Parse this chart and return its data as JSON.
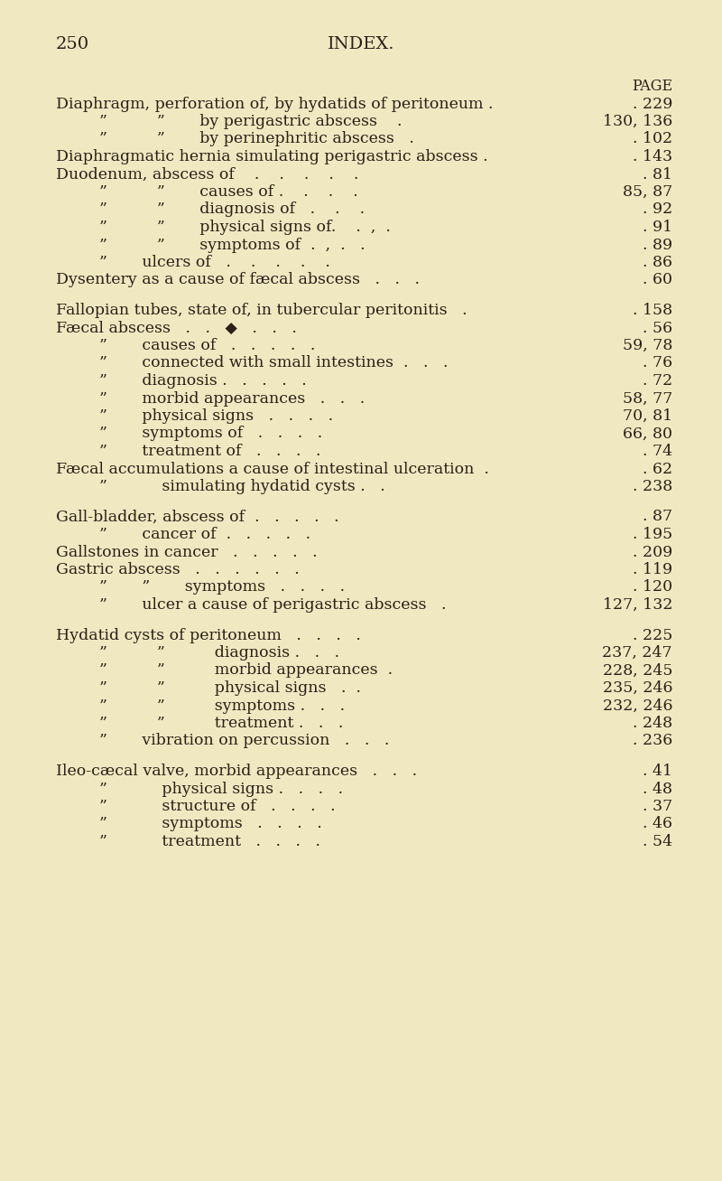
{
  "bg_color": "#f0e8c0",
  "text_color": "#2a2018",
  "page_number": "250",
  "page_header": "INDEX.",
  "font_size": 12.5,
  "header_font_size": 14,
  "page_num_font_size": 14,
  "lines": [
    {
      "indent": -2,
      "text": "PAGE",
      "page": "",
      "right_label": true
    },
    {
      "indent": 0,
      "text": "Diaphragm, perforation of, by hydatids of peritoneum .",
      "page": ". 229"
    },
    {
      "indent": 1,
      "text": "”          ”       by perigastric abscess    .",
      "page": "130, 136"
    },
    {
      "indent": 1,
      "text": "”          ”       by perinephritic abscess   .",
      "page": ". 102"
    },
    {
      "indent": 0,
      "text": "Diaphragmatic hernia simulating perigastric abscess .",
      "page": ". 143"
    },
    {
      "indent": 0,
      "text": "Duodenum, abscess of    .    .    .    .    .",
      "page": ". 81"
    },
    {
      "indent": 2,
      "text": "”          ”       causes of .    .    .    .",
      "page": "85, 87"
    },
    {
      "indent": 2,
      "text": "”          ”       diagnosis of   .    .    .",
      "page": ". 92"
    },
    {
      "indent": 2,
      "text": "”          ”       physical signs of.    .  ,  .",
      "page": ". 91"
    },
    {
      "indent": 2,
      "text": "”          ”       symptoms of  .  ,  .   .",
      "page": ". 89"
    },
    {
      "indent": 2,
      "text": "”       ulcers of   .    .    .    .    .",
      "page": ". 86"
    },
    {
      "indent": 0,
      "text": "Dysentery as a cause of fæcal abscess   .   .   .",
      "page": ". 60"
    },
    {
      "indent": -1,
      "text": "",
      "page": ""
    },
    {
      "indent": 0,
      "text": "Fallopian tubes, state of, in tubercular peritonitis   .",
      "page": ". 158"
    },
    {
      "indent": 0,
      "text": "Fæcal abscess   .   .   ◆   .   .   .",
      "page": ". 56"
    },
    {
      "indent": 2,
      "text": "”       causes of   .   .   .   .   .",
      "page": "59, 78"
    },
    {
      "indent": 2,
      "text": "”       connected with small intestines  .   .   .",
      "page": ". 76"
    },
    {
      "indent": 2,
      "text": "”       diagnosis .   .   .   .   .",
      "page": ". 72"
    },
    {
      "indent": 2,
      "text": "”       morbid appearances   .   .   .",
      "page": "58, 77"
    },
    {
      "indent": 2,
      "text": "”       physical signs   .   .   .   .",
      "page": "70, 81"
    },
    {
      "indent": 2,
      "text": "”       symptoms of   .   .   .   .",
      "page": "66, 80"
    },
    {
      "indent": 2,
      "text": "”       treatment of   .   .   .   .",
      "page": ". 74"
    },
    {
      "indent": 0,
      "text": "Fæcal accumulations a cause of intestinal ulceration  .",
      "page": ". 62"
    },
    {
      "indent": 2,
      "text": "”           simulating hydatid cysts .   .",
      "page": ". 238"
    },
    {
      "indent": -1,
      "text": "",
      "page": ""
    },
    {
      "indent": 0,
      "text": "Gall-bladder, abscess of  .   .   .   .   .",
      "page": ". 87"
    },
    {
      "indent": 2,
      "text": "”       cancer of  .   .   .   .   .",
      "page": ". 195"
    },
    {
      "indent": 0,
      "text": "Gallstones in cancer   .   .   .   .   .",
      "page": ". 209"
    },
    {
      "indent": 0,
      "text": "Gastric abscess   .   .   .   .   .   .",
      "page": ". 119"
    },
    {
      "indent": 2,
      "text": "”       ”       symptoms   .   .   .   .",
      "page": ". 120"
    },
    {
      "indent": 2,
      "text": "”       ulcer a cause of perigastric abscess   .",
      "page": "127, 132"
    },
    {
      "indent": -1,
      "text": "",
      "page": ""
    },
    {
      "indent": 0,
      "text": "Hydatid cysts of peritoneum   .   .   .   .",
      "page": ". 225"
    },
    {
      "indent": 2,
      "text": "”          ”          diagnosis .   .   .",
      "page": "237, 247"
    },
    {
      "indent": 2,
      "text": "”          ”          morbid appearances  .",
      "page": "228, 245"
    },
    {
      "indent": 2,
      "text": "”          ”          physical signs   .  .",
      "page": "235, 246"
    },
    {
      "indent": 2,
      "text": "”          ”          symptoms .   .   .",
      "page": "232, 246"
    },
    {
      "indent": 2,
      "text": "”          ”          treatment .   .   .",
      "page": ". 248"
    },
    {
      "indent": 2,
      "text": "”       vibration on percussion   .   .   .",
      "page": ". 236"
    },
    {
      "indent": -1,
      "text": "",
      "page": ""
    },
    {
      "indent": 0,
      "text": "Ileo-cæcal valve, morbid appearances   .   .   .",
      "page": ". 41"
    },
    {
      "indent": 2,
      "text": "”           physical signs .   .   .   .",
      "page": ". 48"
    },
    {
      "indent": 2,
      "text": "”           structure of   .   .   .   .",
      "page": ". 37"
    },
    {
      "indent": 2,
      "text": "”           symptoms   .   .   .   .",
      "page": ". 46"
    },
    {
      "indent": 2,
      "text": "”           treatment   .   .   .   .",
      "page": ". 54"
    }
  ]
}
